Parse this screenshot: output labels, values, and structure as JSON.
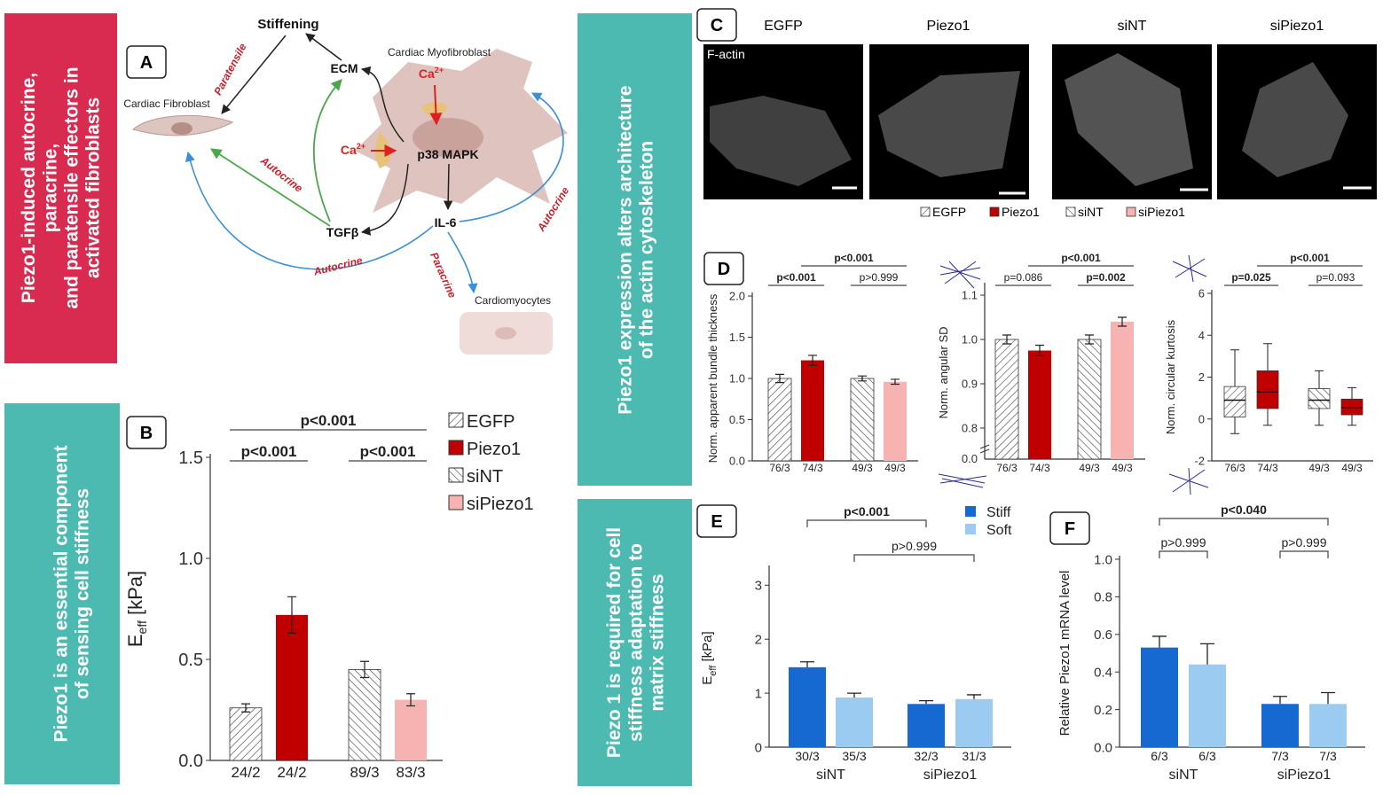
{
  "side_labels": [
    {
      "lines": [
        "Piezo1-induced autocrine,",
        "paracrine,",
        "and paratensile effectors in",
        "activated fibroblasts"
      ]
    },
    {
      "lines": [
        "Piezo1 is an essential component",
        "of sensing cell stiffness"
      ]
    },
    {
      "lines": [
        "Piezo1 expression alters architecture",
        "of the actin cytoskeleton"
      ]
    },
    {
      "lines": [
        "Piezo 1 is required for cell",
        "stiffness adaptation to",
        "matrix stiffness"
      ]
    }
  ],
  "panel_letters": [
    "A",
    "B",
    "C",
    "D",
    "E",
    "F"
  ],
  "diagram": {
    "labels": [
      "Stiffening",
      "ECM",
      "Cardiac Myofibroblast",
      "Cardiac Fibroblast",
      "Paratensile",
      {
        "base": "Ca",
        "sup": "2+"
      },
      {
        "base": "Ca",
        "sup": "2+"
      },
      "p38 MAPK",
      "Autocrine",
      "TGFβ",
      "IL-6",
      "Autocrine",
      "Autocrine",
      "Paracrine",
      "Cardiomyocytes"
    ]
  },
  "micrographs": {
    "titles": [
      "EGFP",
      "Piezo1",
      "siNT",
      "siPiezo1"
    ],
    "channel": "F-actin",
    "legend": [
      {
        "name": "EGFP",
        "color": "#444444",
        "pattern": "hatch"
      },
      {
        "name": "Piezo1",
        "color": "#c00000",
        "pattern": "solid"
      },
      {
        "name": "siNT",
        "color": "#444444",
        "pattern": "backhatch"
      },
      {
        "name": "siPiezo1",
        "color": "#f7b2b2",
        "pattern": "solid"
      }
    ]
  },
  "chart_data": [
    {
      "type": "bar",
      "ylabel": [
        "E",
        "eff",
        " [kPa]"
      ],
      "categories": [
        "24/2",
        "24/2",
        "89/3",
        "83/3"
      ],
      "values": [
        0.26,
        0.72,
        0.45,
        0.3
      ],
      "errors": [
        0.02,
        0.09,
        0.04,
        0.03
      ],
      "colors": [
        "#444444",
        "#c00000",
        "#444444",
        "#f7b2b2"
      ],
      "patterns": [
        "hatch",
        "solid",
        "backhatch",
        "solid"
      ],
      "ylim": [
        0,
        1.5
      ],
      "yticks": [
        {
          "value": 0,
          "label": "0.0"
        },
        {
          "value": 0.5,
          "label": "0.5"
        },
        {
          "value": 1,
          "label": "1.0"
        },
        {
          "value": 1.5,
          "label": "1.5"
        }
      ],
      "annotations": [
        {
          "text": "p<0.001",
          "between": [
            0,
            1
          ],
          "bold": true
        },
        {
          "text": "p<0.001",
          "between": [
            2,
            3
          ],
          "bold": true
        },
        {
          "text": "p<0.001",
          "between": [
            0,
            3
          ],
          "bold": true
        }
      ],
      "legend": [
        {
          "name": "EGFP",
          "color": "#444444",
          "pattern": "hatch"
        },
        {
          "name": "Piezo1",
          "color": "#c00000",
          "pattern": "solid"
        },
        {
          "name": "siNT",
          "color": "#444444",
          "pattern": "backhatch"
        },
        {
          "name": "siPiezo1",
          "color": "#f7b2b2",
          "pattern": "solid"
        }
      ]
    },
    {
      "type": "bar",
      "ylabel": [
        "Norm. apparent bundle thickness"
      ],
      "categories": [
        "76/3",
        "74/3",
        "49/3",
        "49/3"
      ],
      "values": [
        1.0,
        1.22,
        1.0,
        0.96
      ],
      "errors": [
        0.05,
        0.06,
        0.03,
        0.03
      ],
      "colors": [
        "#444444",
        "#c00000",
        "#444444",
        "#f7b2b2"
      ],
      "patterns": [
        "hatch",
        "solid",
        "backhatch",
        "solid"
      ],
      "ylim": [
        0,
        2
      ],
      "yticks": [
        {
          "value": 0,
          "label": "0.0"
        },
        {
          "value": 0.5,
          "label": "0.5"
        },
        {
          "value": 1,
          "label": "1.0"
        },
        {
          "value": 1.5,
          "label": "1.5"
        },
        {
          "value": 2,
          "label": "2.0"
        }
      ],
      "annotations": [
        {
          "text": "p<0.001",
          "between": [
            0,
            1
          ],
          "bold": true
        },
        {
          "text": "p>0.999",
          "between": [
            2,
            3
          ],
          "bold": false
        },
        {
          "text": "p<0.001",
          "between": [
            1,
            3
          ],
          "bold": true
        }
      ]
    },
    {
      "type": "bar",
      "ylabel": [
        "Norm. angular SD"
      ],
      "categories": [
        "76/3",
        "74/3",
        "49/3",
        "49/3"
      ],
      "values": [
        1.0,
        0.975,
        1.0,
        1.04
      ],
      "errors": [
        0.01,
        0.012,
        0.01,
        0.01
      ],
      "colors": [
        "#444444",
        "#c00000",
        "#444444",
        "#f7b2b2"
      ],
      "patterns": [
        "hatch",
        "solid",
        "backhatch",
        "solid"
      ],
      "ylim": [
        0.73,
        1.12
      ],
      "yticks": [
        {
          "value": 0.8,
          "label": "0.8"
        },
        0.9,
        {
          "value": 1,
          "label": "1.0"
        },
        1.1
      ],
      "ybreak": {
        "value": 0,
        "label": "0.0"
      },
      "annotations": [
        {
          "text": "p=0.086",
          "between": [
            0,
            1
          ],
          "bold": false
        },
        {
          "text": "p=0.002",
          "between": [
            2,
            3
          ],
          "bold": true
        },
        {
          "text": "p<0.001",
          "between": [
            1,
            3
          ],
          "bold": true
        }
      ]
    },
    {
      "type": "box",
      "ylabel": [
        "Norm. circular kurtosis"
      ],
      "categories": [
        "76/3",
        "74/3",
        "49/3",
        "49/3"
      ],
      "boxes": [
        {
          "low": -0.7,
          "q1": 0.1,
          "median": 0.9,
          "q3": 1.55,
          "high": 3.3
        },
        {
          "low": -0.3,
          "q1": 0.5,
          "median": 1.3,
          "q3": 2.3,
          "high": 3.6
        },
        {
          "low": -0.3,
          "q1": 0.5,
          "median": 0.9,
          "q3": 1.45,
          "high": 2.3
        },
        {
          "low": -0.3,
          "q1": 0.2,
          "median": 0.55,
          "q3": 0.95,
          "high": 1.5
        }
      ],
      "colors": [
        "#444444",
        "#c00000",
        "#444444",
        "#c00000"
      ],
      "patterns": [
        "hatch",
        "solid",
        "backhatch",
        "solid"
      ],
      "ylim": [
        -2,
        6
      ],
      "yticks": [
        -2,
        0,
        2,
        4,
        6
      ],
      "annotations": [
        {
          "text": "p=0.025",
          "between": [
            0,
            1
          ],
          "bold": true
        },
        {
          "text": "p=0.093",
          "between": [
            2,
            3
          ],
          "bold": false
        },
        {
          "text": "p<0.001",
          "between": [
            1,
            3
          ],
          "bold": true
        }
      ]
    },
    {
      "type": "grouped_bar",
      "ylabel": [
        "E",
        "eff",
        " [kPa]"
      ],
      "categories": [
        "siNT",
        "siPiezo1"
      ],
      "series": [
        {
          "name": "Stiff",
          "color": "#1769d2",
          "values": [
            1.48,
            0.8
          ],
          "errors": [
            0.1,
            0.06
          ],
          "n_labels": [
            "30/3",
            "32/3"
          ]
        },
        {
          "name": "Soft",
          "color": "#9ccbf2",
          "values": [
            0.92,
            0.89
          ],
          "errors": [
            0.08,
            0.08
          ],
          "n_labels": [
            "35/3",
            "31/3"
          ]
        }
      ],
      "ylim": [
        0,
        3.3
      ],
      "yticks": [
        0,
        1,
        2,
        3
      ],
      "annotations": [
        {
          "text": "p<0.001",
          "between": [
            0,
            2
          ],
          "bold": true
        },
        {
          "text": "p>0.999",
          "between": [
            1,
            3
          ],
          "bold": false
        }
      ]
    },
    {
      "type": "grouped_bar",
      "ylabel": [
        "Relative Piezo1 mRNA level"
      ],
      "categories": [
        "siNT",
        "siPiezo1"
      ],
      "series": [
        {
          "name": "Stiff",
          "color": "#1769d2",
          "values": [
            0.53,
            0.23
          ],
          "errors": [
            0.06,
            0.04
          ],
          "n_labels": [
            "6/3",
            "7/3"
          ]
        },
        {
          "name": "Soft",
          "color": "#9ccbf2",
          "values": [
            0.44,
            0.23
          ],
          "errors": [
            0.11,
            0.06
          ],
          "n_labels": [
            "6/3",
            "7/3"
          ]
        }
      ],
      "ylim": [
        0,
        1
      ],
      "yticks": [
        {
          "value": 0,
          "label": "0.0"
        },
        0.2,
        0.4,
        0.6,
        0.8,
        {
          "value": 1,
          "label": "1.0"
        }
      ],
      "annotations": [
        {
          "text": "p>0.999",
          "between": [
            0,
            1
          ],
          "bold": false
        },
        {
          "text": "p>0.999",
          "between": [
            2,
            3
          ],
          "bold": false
        },
        {
          "text": "p<0.040",
          "between": [
            0,
            3
          ],
          "bold": true
        }
      ]
    }
  ]
}
